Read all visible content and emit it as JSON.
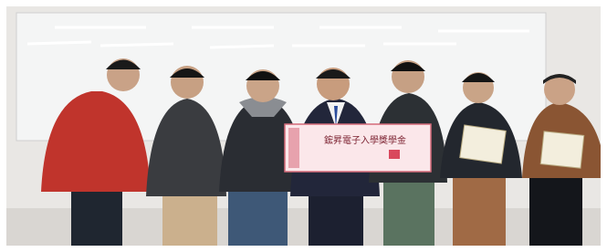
{
  "check": {
    "title": "鋐昇電子入學獎學金"
  }
}
